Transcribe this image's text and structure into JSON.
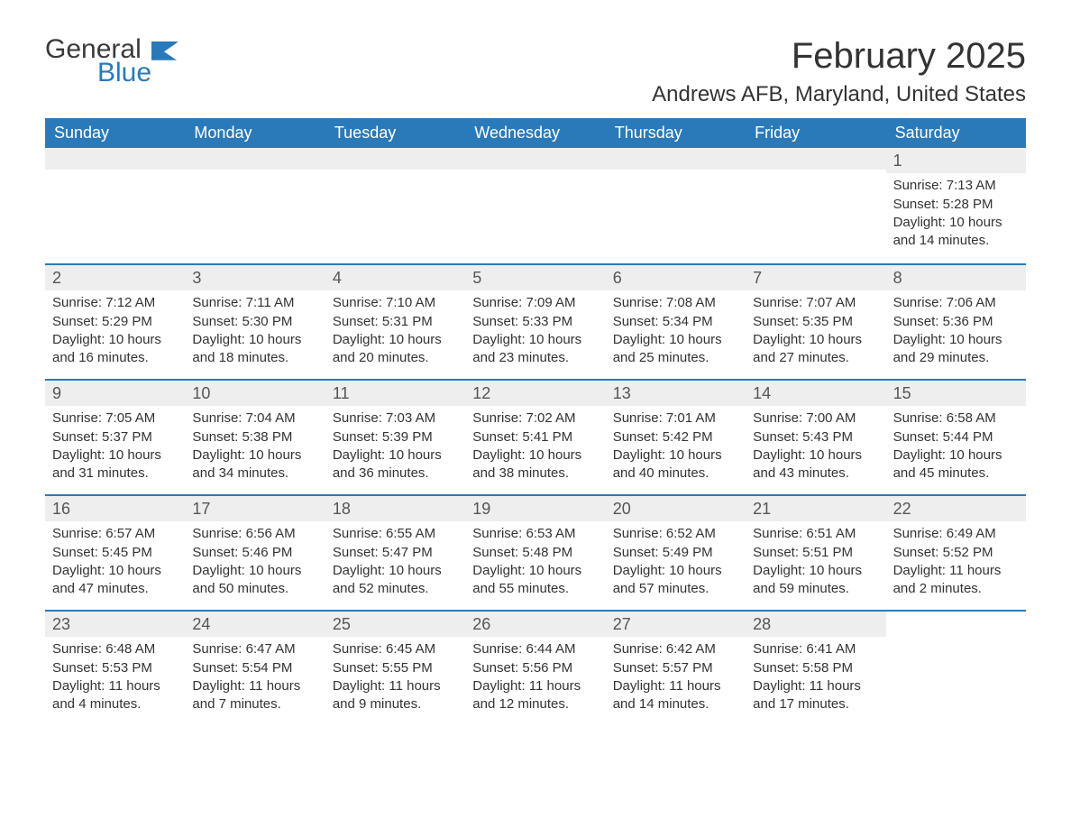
{
  "brand": {
    "part1": "General",
    "part2": "Blue",
    "logo_color": "#2a7ab9"
  },
  "title": "February 2025",
  "location": "Andrews AFB, Maryland, United States",
  "colors": {
    "header_bg": "#2a7ab9",
    "header_text": "#ffffff",
    "row_border": "#2a7ab9",
    "daynum_bg": "#eeeeee",
    "body_text": "#333333",
    "page_bg": "#ffffff"
  },
  "typography": {
    "title_fontsize": 40,
    "location_fontsize": 24,
    "weekday_fontsize": 18,
    "daynum_fontsize": 18,
    "body_fontsize": 15
  },
  "layout": {
    "columns": 7,
    "rows": 5
  },
  "weekdays": [
    "Sunday",
    "Monday",
    "Tuesday",
    "Wednesday",
    "Thursday",
    "Friday",
    "Saturday"
  ],
  "weeks": [
    [
      null,
      null,
      null,
      null,
      null,
      null,
      {
        "n": "1",
        "sunrise": "Sunrise: 7:13 AM",
        "sunset": "Sunset: 5:28 PM",
        "dl1": "Daylight: 10 hours",
        "dl2": "and 14 minutes."
      }
    ],
    [
      {
        "n": "2",
        "sunrise": "Sunrise: 7:12 AM",
        "sunset": "Sunset: 5:29 PM",
        "dl1": "Daylight: 10 hours",
        "dl2": "and 16 minutes."
      },
      {
        "n": "3",
        "sunrise": "Sunrise: 7:11 AM",
        "sunset": "Sunset: 5:30 PM",
        "dl1": "Daylight: 10 hours",
        "dl2": "and 18 minutes."
      },
      {
        "n": "4",
        "sunrise": "Sunrise: 7:10 AM",
        "sunset": "Sunset: 5:31 PM",
        "dl1": "Daylight: 10 hours",
        "dl2": "and 20 minutes."
      },
      {
        "n": "5",
        "sunrise": "Sunrise: 7:09 AM",
        "sunset": "Sunset: 5:33 PM",
        "dl1": "Daylight: 10 hours",
        "dl2": "and 23 minutes."
      },
      {
        "n": "6",
        "sunrise": "Sunrise: 7:08 AM",
        "sunset": "Sunset: 5:34 PM",
        "dl1": "Daylight: 10 hours",
        "dl2": "and 25 minutes."
      },
      {
        "n": "7",
        "sunrise": "Sunrise: 7:07 AM",
        "sunset": "Sunset: 5:35 PM",
        "dl1": "Daylight: 10 hours",
        "dl2": "and 27 minutes."
      },
      {
        "n": "8",
        "sunrise": "Sunrise: 7:06 AM",
        "sunset": "Sunset: 5:36 PM",
        "dl1": "Daylight: 10 hours",
        "dl2": "and 29 minutes."
      }
    ],
    [
      {
        "n": "9",
        "sunrise": "Sunrise: 7:05 AM",
        "sunset": "Sunset: 5:37 PM",
        "dl1": "Daylight: 10 hours",
        "dl2": "and 31 minutes."
      },
      {
        "n": "10",
        "sunrise": "Sunrise: 7:04 AM",
        "sunset": "Sunset: 5:38 PM",
        "dl1": "Daylight: 10 hours",
        "dl2": "and 34 minutes."
      },
      {
        "n": "11",
        "sunrise": "Sunrise: 7:03 AM",
        "sunset": "Sunset: 5:39 PM",
        "dl1": "Daylight: 10 hours",
        "dl2": "and 36 minutes."
      },
      {
        "n": "12",
        "sunrise": "Sunrise: 7:02 AM",
        "sunset": "Sunset: 5:41 PM",
        "dl1": "Daylight: 10 hours",
        "dl2": "and 38 minutes."
      },
      {
        "n": "13",
        "sunrise": "Sunrise: 7:01 AM",
        "sunset": "Sunset: 5:42 PM",
        "dl1": "Daylight: 10 hours",
        "dl2": "and 40 minutes."
      },
      {
        "n": "14",
        "sunrise": "Sunrise: 7:00 AM",
        "sunset": "Sunset: 5:43 PM",
        "dl1": "Daylight: 10 hours",
        "dl2": "and 43 minutes."
      },
      {
        "n": "15",
        "sunrise": "Sunrise: 6:58 AM",
        "sunset": "Sunset: 5:44 PM",
        "dl1": "Daylight: 10 hours",
        "dl2": "and 45 minutes."
      }
    ],
    [
      {
        "n": "16",
        "sunrise": "Sunrise: 6:57 AM",
        "sunset": "Sunset: 5:45 PM",
        "dl1": "Daylight: 10 hours",
        "dl2": "and 47 minutes."
      },
      {
        "n": "17",
        "sunrise": "Sunrise: 6:56 AM",
        "sunset": "Sunset: 5:46 PM",
        "dl1": "Daylight: 10 hours",
        "dl2": "and 50 minutes."
      },
      {
        "n": "18",
        "sunrise": "Sunrise: 6:55 AM",
        "sunset": "Sunset: 5:47 PM",
        "dl1": "Daylight: 10 hours",
        "dl2": "and 52 minutes."
      },
      {
        "n": "19",
        "sunrise": "Sunrise: 6:53 AM",
        "sunset": "Sunset: 5:48 PM",
        "dl1": "Daylight: 10 hours",
        "dl2": "and 55 minutes."
      },
      {
        "n": "20",
        "sunrise": "Sunrise: 6:52 AM",
        "sunset": "Sunset: 5:49 PM",
        "dl1": "Daylight: 10 hours",
        "dl2": "and 57 minutes."
      },
      {
        "n": "21",
        "sunrise": "Sunrise: 6:51 AM",
        "sunset": "Sunset: 5:51 PM",
        "dl1": "Daylight: 10 hours",
        "dl2": "and 59 minutes."
      },
      {
        "n": "22",
        "sunrise": "Sunrise: 6:49 AM",
        "sunset": "Sunset: 5:52 PM",
        "dl1": "Daylight: 11 hours",
        "dl2": "and 2 minutes."
      }
    ],
    [
      {
        "n": "23",
        "sunrise": "Sunrise: 6:48 AM",
        "sunset": "Sunset: 5:53 PM",
        "dl1": "Daylight: 11 hours",
        "dl2": "and 4 minutes."
      },
      {
        "n": "24",
        "sunrise": "Sunrise: 6:47 AM",
        "sunset": "Sunset: 5:54 PM",
        "dl1": "Daylight: 11 hours",
        "dl2": "and 7 minutes."
      },
      {
        "n": "25",
        "sunrise": "Sunrise: 6:45 AM",
        "sunset": "Sunset: 5:55 PM",
        "dl1": "Daylight: 11 hours",
        "dl2": "and 9 minutes."
      },
      {
        "n": "26",
        "sunrise": "Sunrise: 6:44 AM",
        "sunset": "Sunset: 5:56 PM",
        "dl1": "Daylight: 11 hours",
        "dl2": "and 12 minutes."
      },
      {
        "n": "27",
        "sunrise": "Sunrise: 6:42 AM",
        "sunset": "Sunset: 5:57 PM",
        "dl1": "Daylight: 11 hours",
        "dl2": "and 14 minutes."
      },
      {
        "n": "28",
        "sunrise": "Sunrise: 6:41 AM",
        "sunset": "Sunset: 5:58 PM",
        "dl1": "Daylight: 11 hours",
        "dl2": "and 17 minutes."
      },
      null
    ]
  ]
}
